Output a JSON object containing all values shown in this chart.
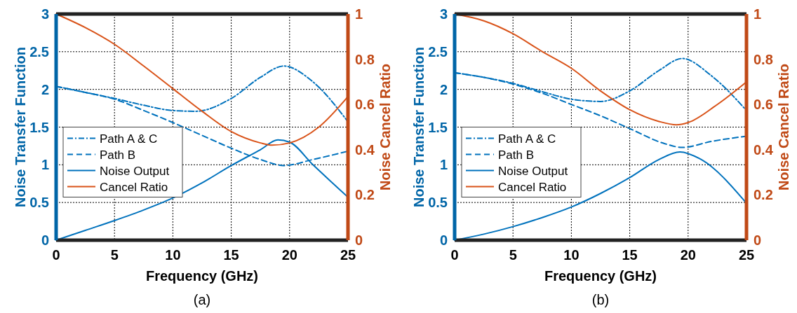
{
  "chart_data": [
    {
      "type": "line",
      "xlabel": "Frequency (GHz)",
      "ylabel": "Noise Transfer Function",
      "y2label": "Noise Cancel Ratio",
      "annotations": [
        "(a)"
      ],
      "xlim": [
        0,
        25
      ],
      "xticks": [
        0,
        5,
        10,
        15,
        20,
        25
      ],
      "ylim": [
        0,
        3
      ],
      "yticks": [
        0,
        0.5,
        1,
        1.5,
        2,
        2.5,
        3
      ],
      "y2lim": [
        0,
        1
      ],
      "y2ticks": [
        0,
        0.2,
        0.4,
        0.6,
        0.8,
        1
      ],
      "grid": true,
      "legend": "left",
      "series": [
        {
          "name": "Path A & C",
          "color": "#0072bd",
          "line_style": "dashdot",
          "x": [
            0,
            2.5,
            5,
            7.5,
            10,
            12,
            15,
            17.5,
            19.5,
            22,
            25
          ],
          "values": [
            2.04,
            1.96,
            1.88,
            1.79,
            1.72,
            1.71,
            1.88,
            2.16,
            2.31,
            2.1,
            1.57
          ]
        },
        {
          "name": "Path B",
          "color": "#0072bd",
          "line_style": "dashed",
          "x": [
            0,
            2.5,
            5,
            7.5,
            10,
            12.5,
            15,
            17.5,
            19.5,
            22,
            25
          ],
          "values": [
            2.04,
            1.96,
            1.87,
            1.72,
            1.56,
            1.39,
            1.22,
            1.07,
            0.99,
            1.07,
            1.18
          ]
        },
        {
          "name": "Noise Output",
          "color": "#0072bd",
          "line_style": "solid",
          "x": [
            0,
            2.5,
            5,
            7.5,
            10,
            12.5,
            15,
            17.5,
            19,
            20,
            22,
            25
          ],
          "values": [
            0,
            0.13,
            0.26,
            0.4,
            0.56,
            0.76,
            0.99,
            1.2,
            1.33,
            1.3,
            1.0,
            0.57
          ]
        },
        {
          "name": "Cancel Ratio",
          "color": "#d95319",
          "line_style": "solid",
          "axis": "y2",
          "x": [
            0,
            2.5,
            5,
            7.5,
            10,
            12.5,
            15,
            17.5,
            18.5,
            20,
            22.5,
            25
          ],
          "values": [
            1.0,
            0.94,
            0.866,
            0.77,
            0.67,
            0.57,
            0.48,
            0.43,
            0.42,
            0.43,
            0.5,
            0.635
          ]
        }
      ]
    },
    {
      "type": "line",
      "xlabel": "Frequency (GHz)",
      "ylabel": "Noise Transfer Function",
      "y2label": "Noise Cancel Ratio",
      "annotations": [
        "(b)"
      ],
      "xlim": [
        0,
        25
      ],
      "xticks": [
        0,
        5,
        10,
        15,
        20,
        25
      ],
      "ylim": [
        0,
        3
      ],
      "yticks": [
        0,
        0.5,
        1,
        1.5,
        2,
        2.5,
        3
      ],
      "y2lim": [
        0,
        1
      ],
      "y2ticks": [
        0,
        0.2,
        0.4,
        0.6,
        0.8,
        1
      ],
      "grid": true,
      "legend": "left",
      "series": [
        {
          "name": "Path A & C",
          "color": "#0072bd",
          "line_style": "dashdot",
          "x": [
            0,
            2.5,
            5,
            7.5,
            10,
            12.5,
            15,
            17.5,
            19.5,
            22,
            25
          ],
          "values": [
            2.22,
            2.16,
            2.08,
            1.97,
            1.87,
            1.84,
            1.98,
            2.25,
            2.41,
            2.18,
            1.72
          ]
        },
        {
          "name": "Path B",
          "color": "#0072bd",
          "line_style": "dashed",
          "x": [
            0,
            2.5,
            5,
            7.5,
            10,
            12.5,
            15,
            18,
            19.5,
            22,
            25
          ],
          "values": [
            2.22,
            2.16,
            2.07,
            1.95,
            1.8,
            1.65,
            1.48,
            1.28,
            1.23,
            1.31,
            1.38
          ]
        },
        {
          "name": "Noise Output",
          "color": "#0072bd",
          "line_style": "solid",
          "x": [
            0,
            2.5,
            5,
            7.5,
            10,
            12.5,
            15,
            17.5,
            19.3,
            21,
            25
          ],
          "values": [
            0,
            0.08,
            0.18,
            0.3,
            0.44,
            0.62,
            0.83,
            1.07,
            1.17,
            1.08,
            0.49
          ]
        },
        {
          "name": "Cancel Ratio",
          "color": "#d95319",
          "line_style": "solid",
          "axis": "y2",
          "x": [
            0,
            2.5,
            5,
            7.5,
            10,
            12.5,
            15,
            17.5,
            19,
            20,
            22.5,
            25
          ],
          "values": [
            1.0,
            0.97,
            0.913,
            0.834,
            0.76,
            0.66,
            0.577,
            0.525,
            0.51,
            0.52,
            0.6,
            0.7
          ]
        }
      ]
    }
  ]
}
